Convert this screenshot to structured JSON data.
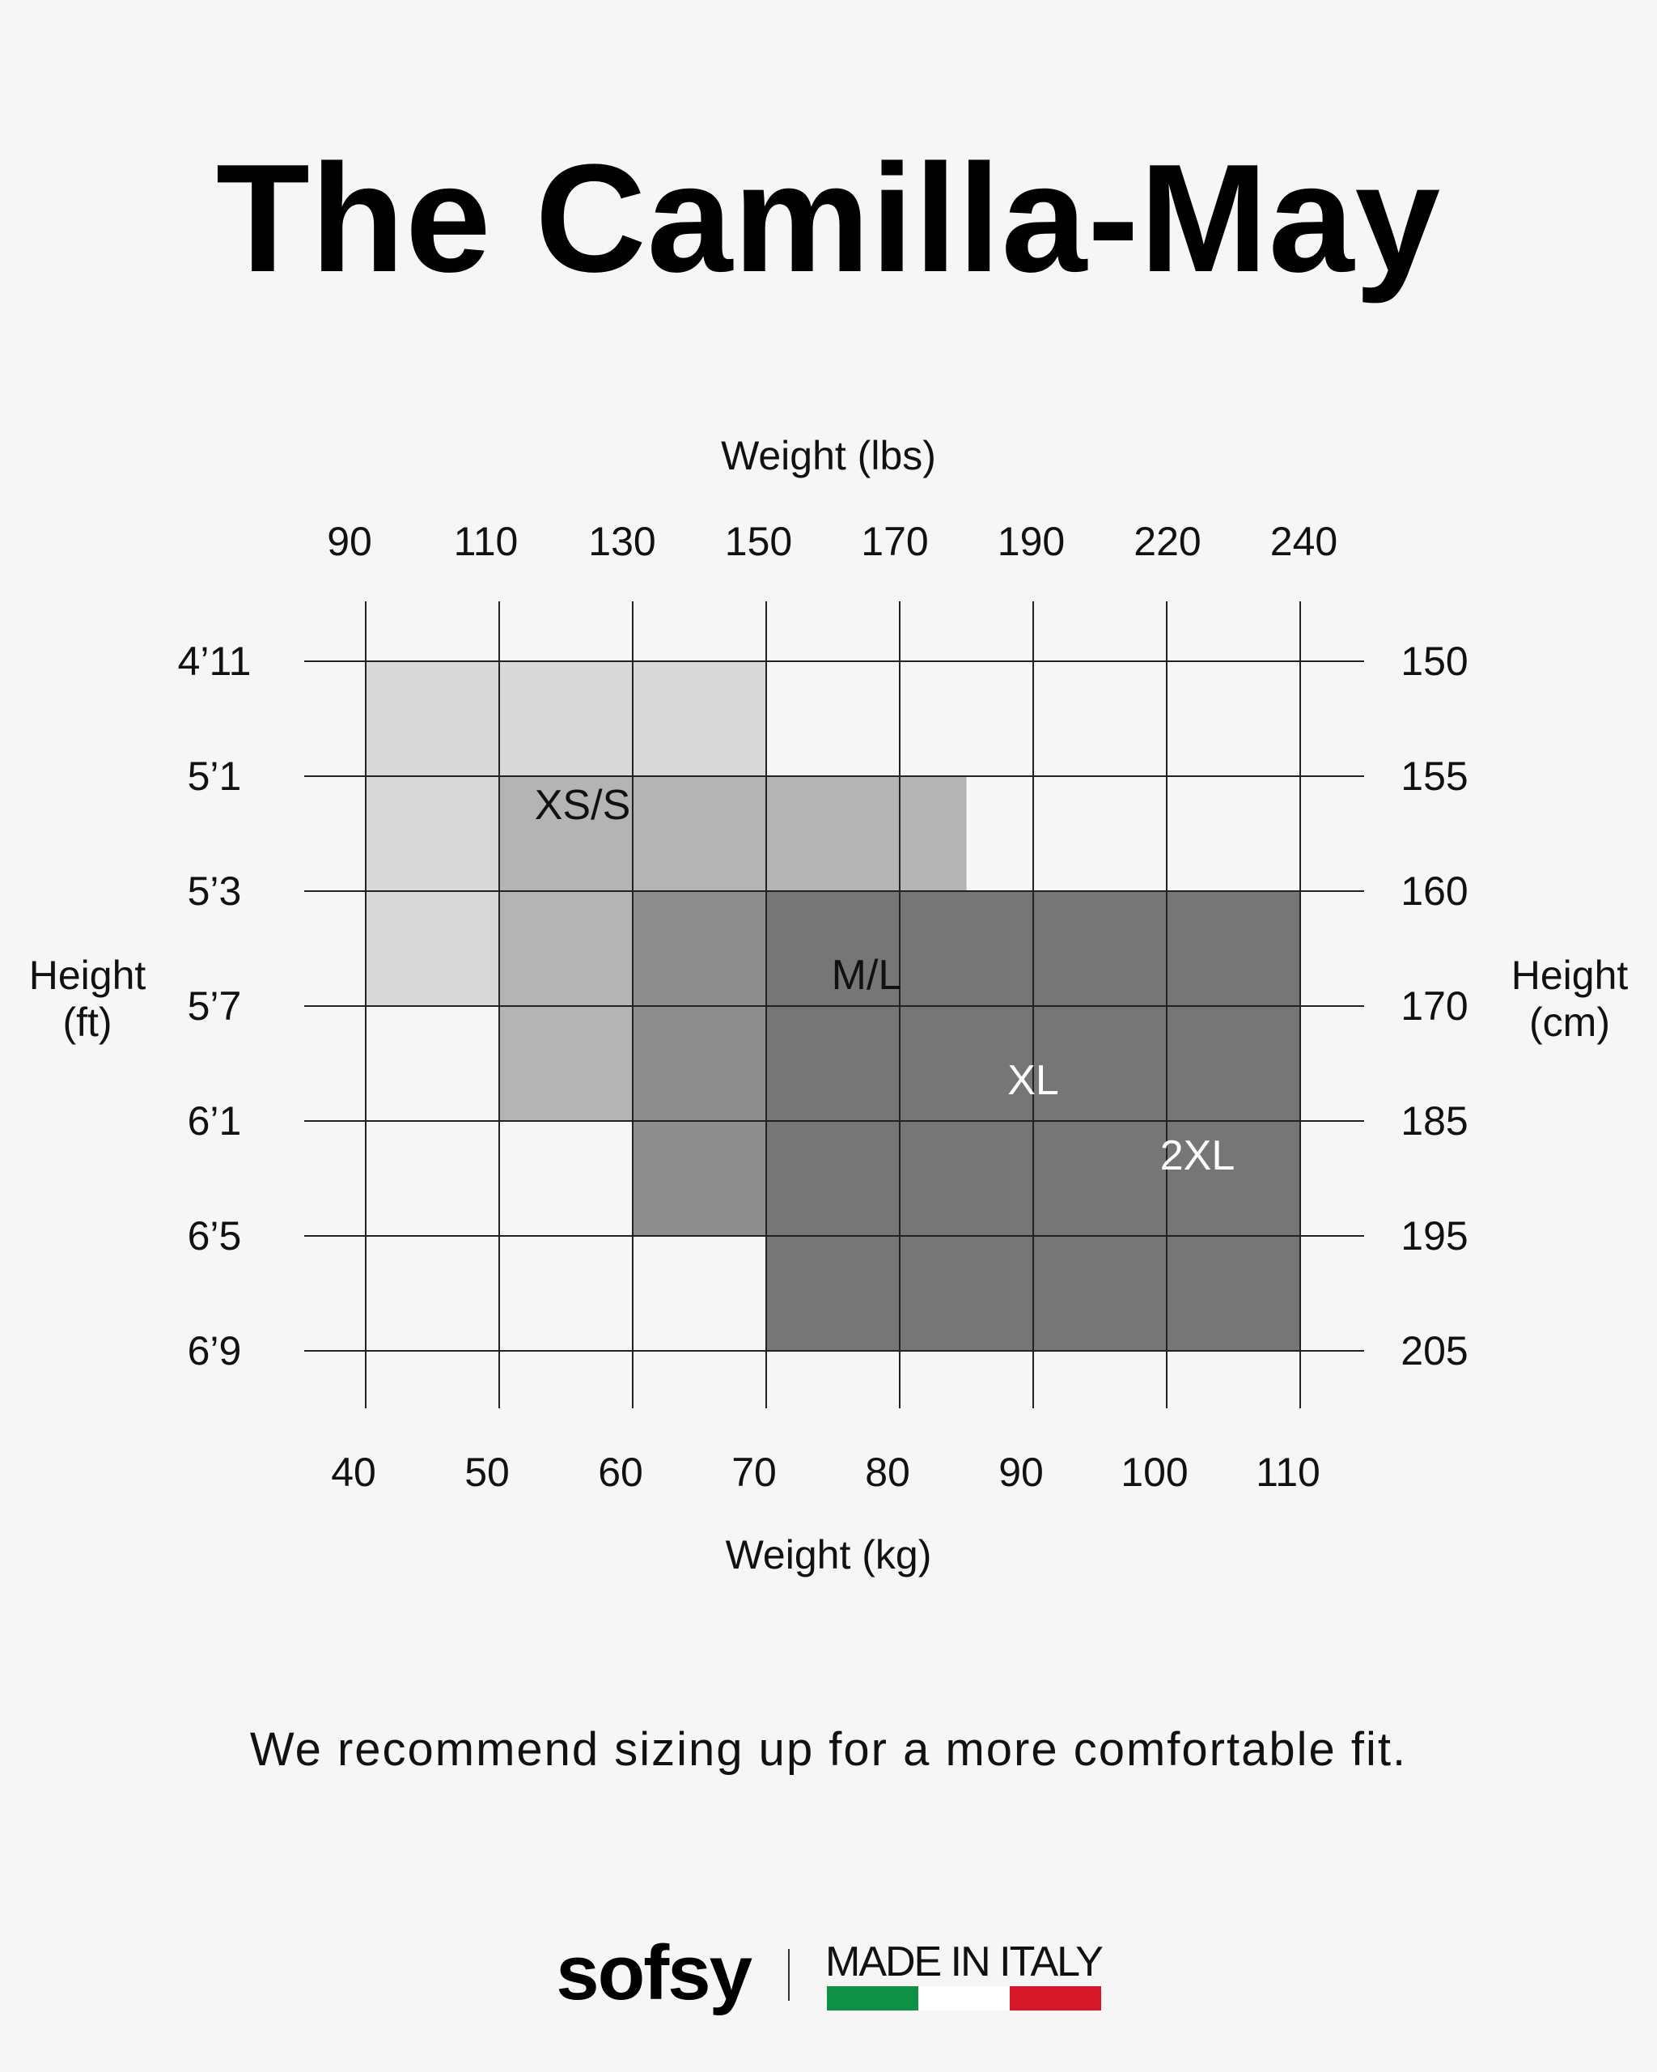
{
  "title": "The Camilla-May",
  "note": "We recommend sizing up for a more comfortable fit.",
  "footer": {
    "brand": "sofsy",
    "made_in": "MADE IN ITALY",
    "flag_colors": [
      "#0f9146",
      "#ffffff",
      "#d7182a"
    ]
  },
  "chart_data": {
    "type": "table",
    "top_axis": {
      "label": "Weight (lbs)",
      "ticks": [
        "90",
        "110",
        "130",
        "150",
        "170",
        "190",
        "220",
        "240"
      ]
    },
    "bottom_axis": {
      "label": "Weight (kg)",
      "ticks": [
        "40",
        "50",
        "60",
        "70",
        "80",
        "90",
        "100",
        "110"
      ],
      "range": [
        40,
        110
      ]
    },
    "left_axis": {
      "label": [
        "Height",
        "(ft)"
      ],
      "ticks": [
        "4’11",
        "5’1",
        "5’3",
        "5’7",
        "6’1",
        "6’5",
        "6’9"
      ]
    },
    "right_axis": {
      "label": [
        "Height",
        "(cm)"
      ],
      "ticks": [
        "150",
        "155",
        "160",
        "170",
        "185",
        "195",
        "205"
      ]
    },
    "grid": true,
    "sizes": [
      {
        "name": "XS/S",
        "kg": [
          40,
          70
        ],
        "row_range": [
          0,
          3
        ],
        "height_cm": [
          150,
          170
        ],
        "color": "#d9d9d9",
        "text_color": "#111111"
      },
      {
        "name": "M/L",
        "kg": [
          50,
          85
        ],
        "row_range": [
          1,
          4
        ],
        "height_cm": [
          155,
          185
        ],
        "color": "#b4b4b4",
        "text_color": "#111111"
      },
      {
        "name": "XL",
        "kg": [
          60,
          95.5
        ],
        "row_range": [
          2,
          5
        ],
        "height_cm": [
          160,
          195
        ],
        "color": "#8e8e8e",
        "text_color": "#ffffff"
      },
      {
        "name": "2XL",
        "kg": [
          70,
          110
        ],
        "row_range": [
          2,
          6
        ],
        "height_cm": [
          160,
          205
        ],
        "color": "#767676",
        "text_color": "#ffffff"
      }
    ]
  }
}
